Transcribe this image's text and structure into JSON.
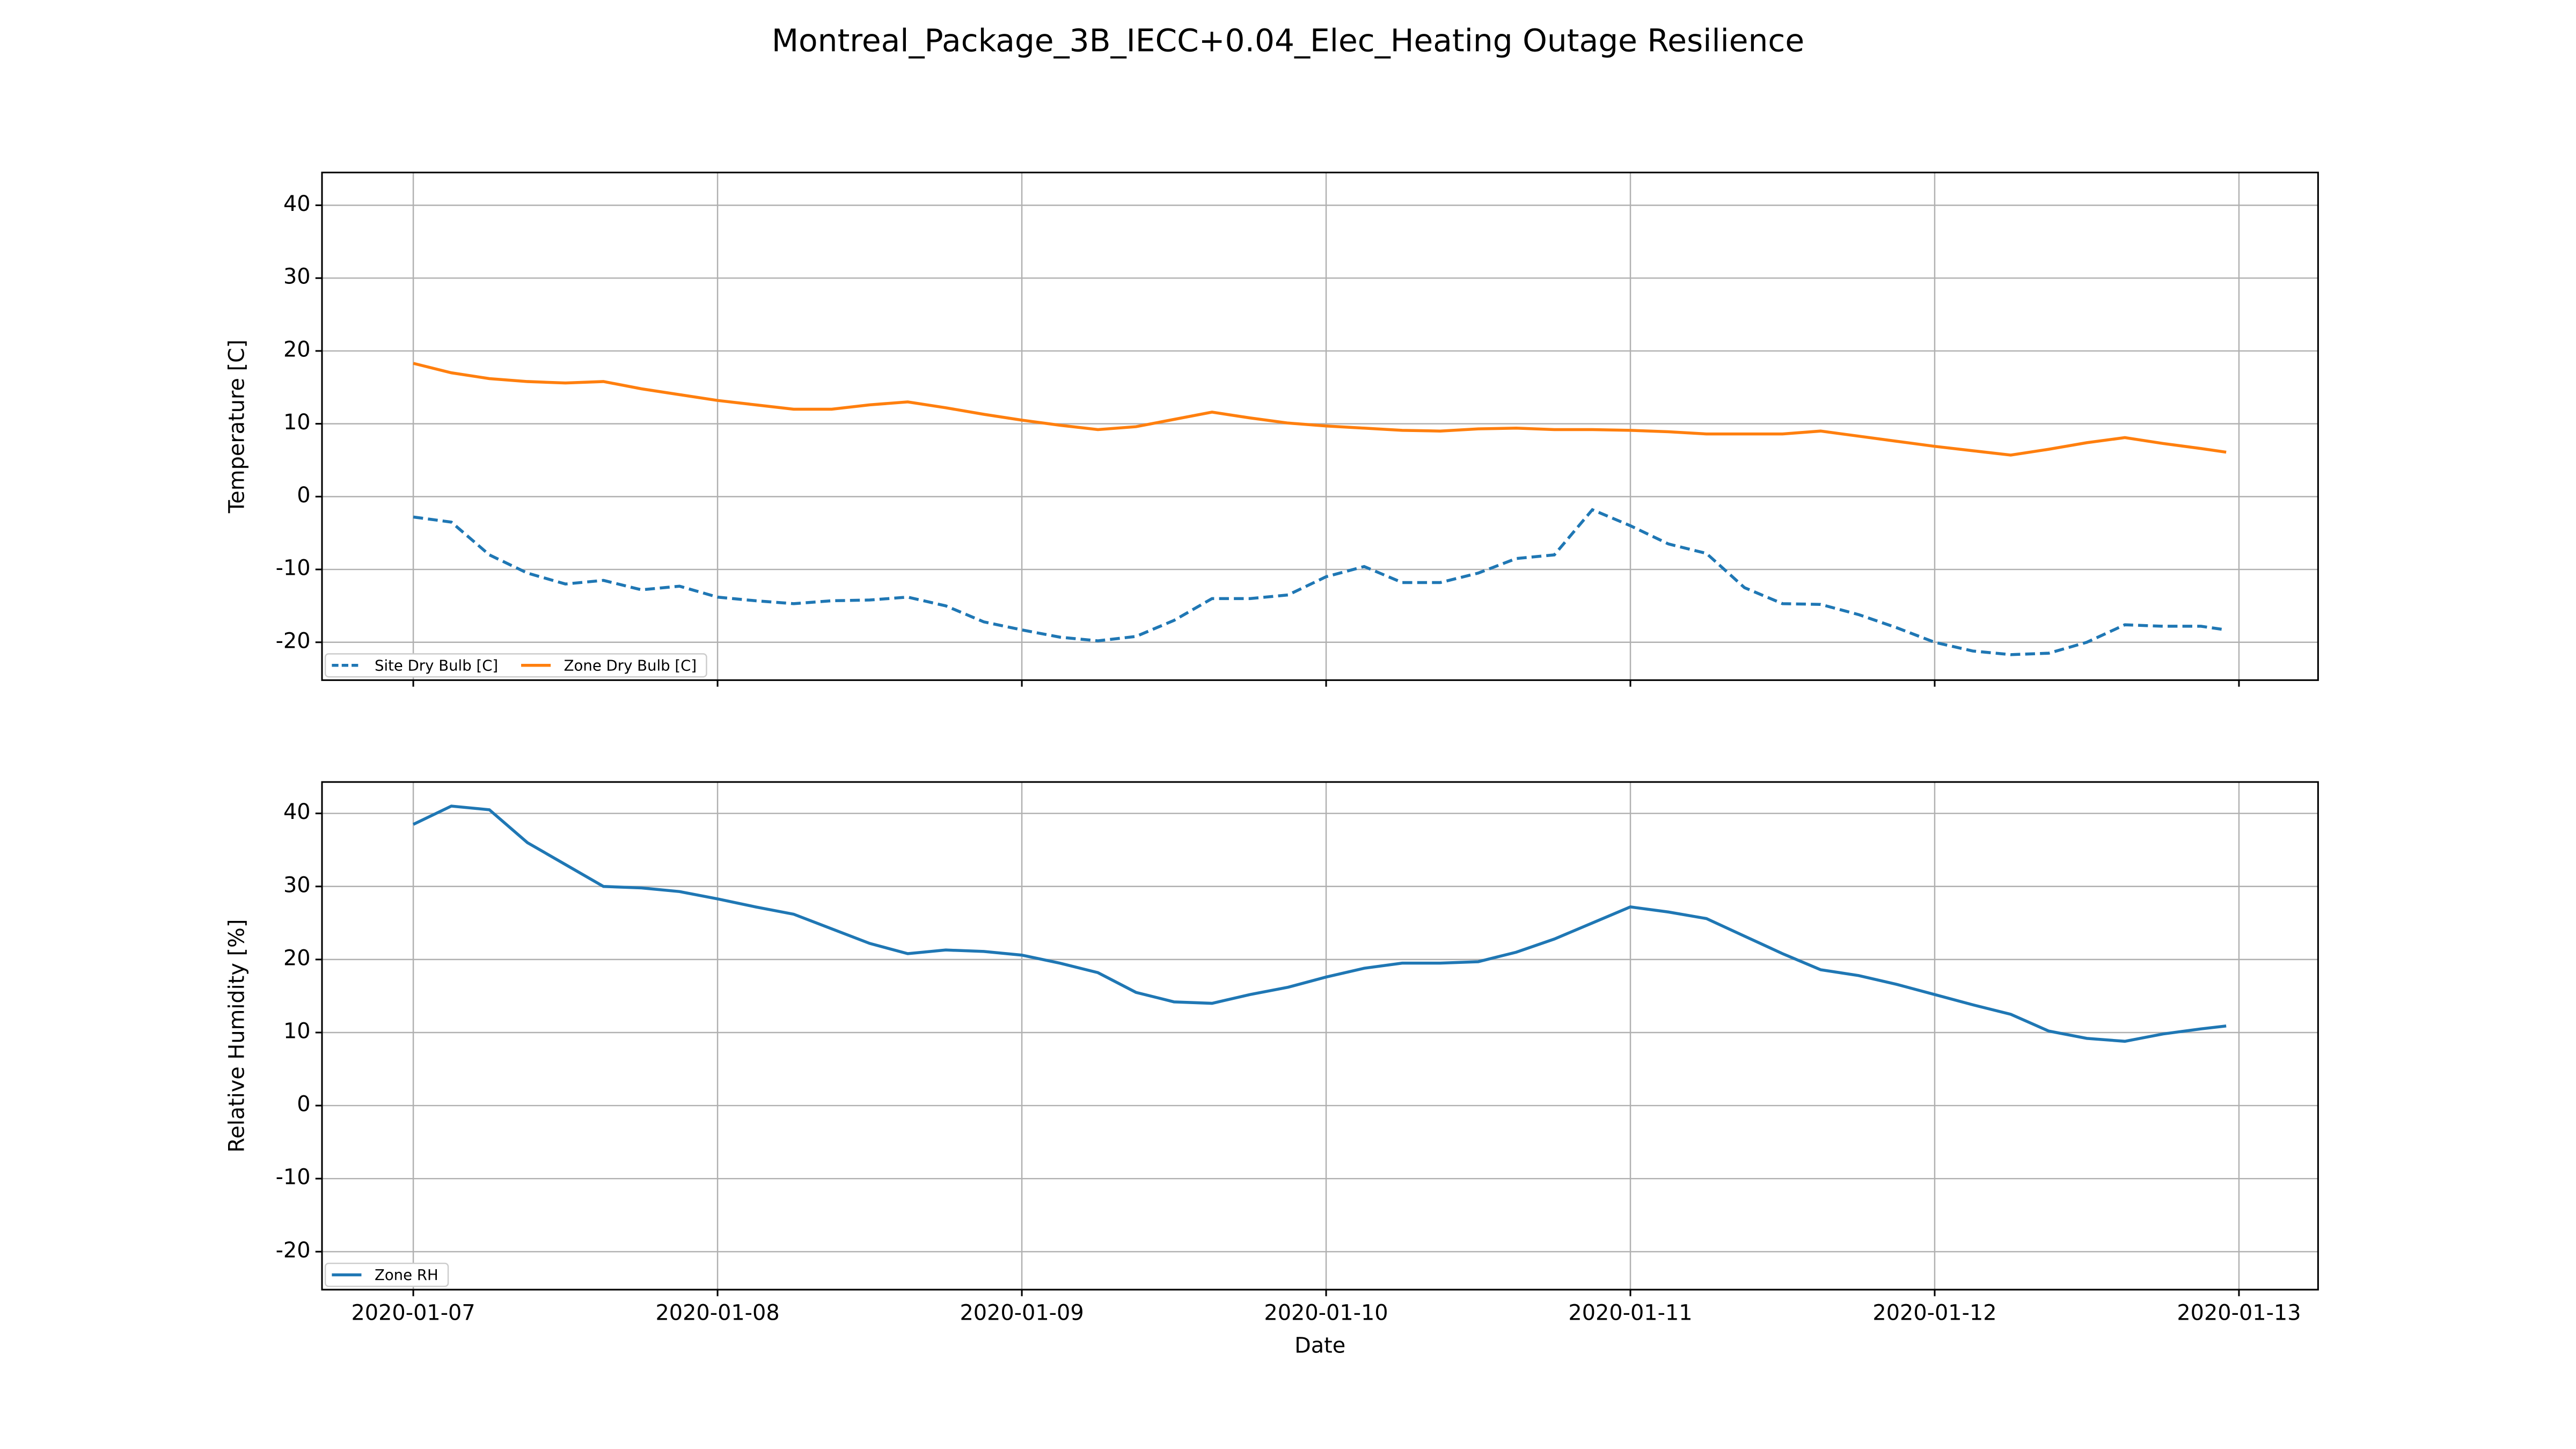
{
  "title": "Montreal_Package_3B_IECC+0.04_Elec_Heating Outage Resilience",
  "chart_data": [
    {
      "type": "line",
      "ylabel": "Temperature [C]",
      "x": [
        0,
        0.125,
        0.25,
        0.375,
        0.5,
        0.625,
        0.75,
        0.875,
        1,
        1.125,
        1.25,
        1.375,
        1.5,
        1.625,
        1.75,
        1.875,
        2,
        2.125,
        2.25,
        2.375,
        2.5,
        2.625,
        2.75,
        2.875,
        3,
        3.125,
        3.25,
        3.375,
        3.5,
        3.625,
        3.75,
        3.875,
        4,
        4.125,
        4.25,
        4.375,
        4.5,
        4.625,
        4.75,
        4.875,
        5,
        5.125,
        5.25,
        5.375,
        5.5,
        5.625,
        5.75,
        5.875,
        5.958
      ],
      "series": [
        {
          "name": "Site Dry Bulb [C]",
          "color": "#1f77b4",
          "linestyle": "dashed",
          "values": [
            -2.8,
            -3.5,
            -8,
            -10.5,
            -12,
            -11.5,
            -12.8,
            -12.3,
            -13.8,
            -14.3,
            -14.7,
            -14.3,
            -14.2,
            -13.8,
            -15,
            -17.2,
            -18.3,
            -19.3,
            -19.8,
            -19.2,
            -17,
            -14,
            -14,
            -13.5,
            -11,
            -9.6,
            -11.8,
            -11.8,
            -10.5,
            -8.5,
            -8,
            -1.8,
            -4,
            -6.5,
            -7.8,
            -12.5,
            -14.7,
            -14.8,
            -16.2,
            -18,
            -20,
            -21.2,
            -21.7,
            -21.5,
            -20,
            -17.6,
            -17.8,
            -17.8,
            -18.3
          ]
        },
        {
          "name": "Zone Dry Bulb [C]",
          "color": "#ff7f0e",
          "linestyle": "solid",
          "values": [
            18.3,
            17,
            16.2,
            15.8,
            15.6,
            15.8,
            14.8,
            14,
            13.2,
            12.6,
            12,
            12,
            12.6,
            13,
            12.2,
            11.3,
            10.5,
            9.8,
            9.2,
            9.6,
            10.6,
            11.6,
            10.8,
            10.1,
            9.7,
            9.4,
            9.1,
            9,
            9.3,
            9.4,
            9.2,
            9.2,
            9.1,
            8.9,
            8.6,
            8.6,
            8.6,
            9,
            8.3,
            7.6,
            6.9,
            6.3,
            5.7,
            6.5,
            7.4,
            8.1,
            7.3,
            6.6,
            6.1
          ]
        }
      ],
      "xlim": [
        -0.3,
        6.26
      ],
      "xticks": [
        0,
        1,
        2,
        3,
        4,
        5,
        6
      ],
      "ylim": [
        -25.2,
        44.5
      ],
      "yticks": [
        -20,
        -10,
        0,
        10,
        20,
        30,
        40
      ],
      "grid": true,
      "legend": "lower left"
    },
    {
      "type": "line",
      "ylabel": "Relative Humidity [%]",
      "xlabel": "Date",
      "x": [
        0,
        0.125,
        0.25,
        0.375,
        0.5,
        0.625,
        0.75,
        0.875,
        1,
        1.125,
        1.25,
        1.375,
        1.5,
        1.625,
        1.75,
        1.875,
        2,
        2.125,
        2.25,
        2.375,
        2.5,
        2.625,
        2.75,
        2.875,
        3,
        3.125,
        3.25,
        3.375,
        3.5,
        3.625,
        3.75,
        3.875,
        4,
        4.125,
        4.25,
        4.375,
        4.5,
        4.625,
        4.75,
        4.875,
        5,
        5.125,
        5.25,
        5.375,
        5.5,
        5.625,
        5.75,
        5.875,
        5.958
      ],
      "series": [
        {
          "name": "Zone RH",
          "color": "#1f77b4",
          "linestyle": "solid",
          "values": [
            38.5,
            41,
            40.5,
            36,
            33,
            30,
            29.8,
            29.3,
            28.3,
            27.2,
            26.2,
            24.2,
            22.2,
            20.8,
            21.3,
            21.1,
            20.6,
            19.5,
            18.2,
            15.5,
            14.2,
            14,
            15.2,
            16.2,
            17.6,
            18.8,
            19.5,
            19.5,
            19.7,
            21,
            22.8,
            25,
            27.2,
            26.5,
            25.6,
            23.2,
            20.8,
            18.6,
            17.8,
            16.6,
            15.2,
            13.8,
            12.5,
            10.2,
            9.2,
            8.8,
            9.8,
            10.5,
            10.9
          ]
        }
      ],
      "xlim": [
        -0.3,
        6.26
      ],
      "xticks": [
        {
          "value": 0,
          "label": "2020-01-07"
        },
        {
          "value": 1,
          "label": "2020-01-08"
        },
        {
          "value": 2,
          "label": "2020-01-09"
        },
        {
          "value": 3,
          "label": "2020-01-10"
        },
        {
          "value": 4,
          "label": "2020-01-11"
        },
        {
          "value": 5,
          "label": "2020-01-12"
        },
        {
          "value": 6,
          "label": "2020-01-13"
        }
      ],
      "ylim": [
        -25.2,
        44.3
      ],
      "yticks": [
        -20,
        -10,
        0,
        10,
        20,
        30,
        40
      ],
      "grid": true,
      "legend": "lower left"
    }
  ]
}
